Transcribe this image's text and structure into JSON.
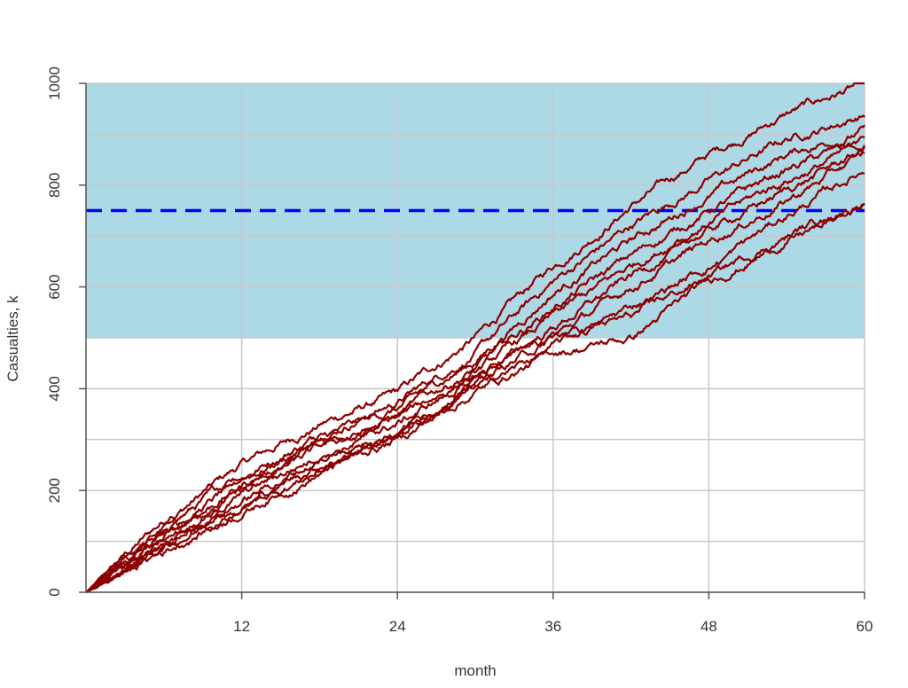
{
  "chart_data": {
    "type": "line",
    "title": "",
    "xlabel": "month",
    "ylabel": "Casualties, k",
    "xlim": [
      0,
      60
    ],
    "ylim": [
      0,
      1000
    ],
    "x_ticks": [
      12,
      24,
      36,
      48,
      60
    ],
    "y_ticks": [
      0,
      200,
      400,
      600,
      800,
      1000
    ],
    "grid": true,
    "shaded_band": {
      "y_from": 500,
      "y_to": 1000,
      "color": "#add8e6"
    },
    "reference_line": {
      "y": 750,
      "color": "#0000ff",
      "style": "dashed"
    },
    "series_color": "#8b0000",
    "series": [
      {
        "x": [
          0,
          6,
          12,
          18,
          24,
          30,
          36,
          42,
          48,
          54,
          60
        ],
        "y": [
          0,
          140,
          250,
          330,
          390,
          500,
          640,
          760,
          860,
          940,
          1000
        ]
      },
      {
        "x": [
          0,
          6,
          12,
          18,
          24,
          30,
          36,
          42,
          48,
          54,
          60
        ],
        "y": [
          0,
          125,
          230,
          310,
          375,
          470,
          610,
          720,
          810,
          890,
          940
        ]
      },
      {
        "x": [
          0,
          6,
          12,
          18,
          24,
          30,
          36,
          42,
          48,
          54,
          60
        ],
        "y": [
          0,
          120,
          220,
          300,
          360,
          455,
          590,
          690,
          780,
          860,
          910
        ]
      },
      {
        "x": [
          0,
          6,
          12,
          18,
          24,
          30,
          36,
          42,
          48,
          54,
          60
        ],
        "y": [
          0,
          110,
          210,
          290,
          350,
          440,
          560,
          660,
          750,
          830,
          890
        ]
      },
      {
        "x": [
          0,
          6,
          12,
          18,
          24,
          30,
          36,
          42,
          48,
          54,
          60
        ],
        "y": [
          0,
          105,
          200,
          280,
          340,
          430,
          540,
          640,
          730,
          810,
          880
        ]
      },
      {
        "x": [
          0,
          6,
          12,
          18,
          24,
          30,
          36,
          42,
          48,
          54,
          60
        ],
        "y": [
          0,
          100,
          190,
          270,
          330,
          420,
          520,
          620,
          710,
          790,
          870
        ]
      },
      {
        "x": [
          0,
          6,
          12,
          18,
          24,
          30,
          36,
          42,
          48,
          54,
          60
        ],
        "y": [
          0,
          95,
          180,
          260,
          320,
          410,
          500,
          600,
          690,
          770,
          860
        ]
      },
      {
        "x": [
          0,
          6,
          12,
          18,
          24,
          30,
          36,
          42,
          48,
          54,
          60
        ],
        "y": [
          0,
          90,
          170,
          250,
          310,
          400,
          480,
          560,
          640,
          740,
          830
        ]
      },
      {
        "x": [
          0,
          6,
          12,
          18,
          24,
          30,
          36,
          42,
          48,
          54,
          60
        ],
        "y": [
          0,
          85,
          165,
          240,
          300,
          395,
          470,
          500,
          610,
          690,
          760
        ]
      },
      {
        "x": [
          0,
          6,
          12,
          18,
          24,
          30,
          36,
          42,
          48,
          54,
          60
        ],
        "y": [
          0,
          80,
          160,
          235,
          310,
          420,
          500,
          540,
          620,
          700,
          770
        ]
      }
    ]
  }
}
